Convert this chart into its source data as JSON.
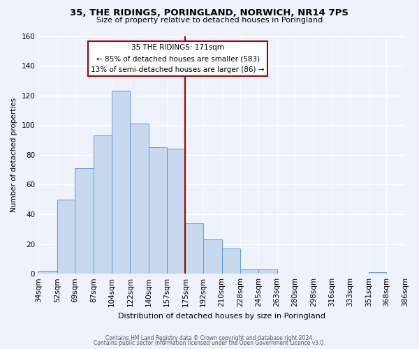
{
  "title": "35, THE RIDINGS, PORINGLAND, NORWICH, NR14 7PS",
  "subtitle": "Size of property relative to detached houses in Poringland",
  "xlabel": "Distribution of detached houses by size in Poringland",
  "ylabel": "Number of detached properties",
  "bar_edges": [
    34,
    52,
    69,
    87,
    104,
    122,
    140,
    157,
    175,
    192,
    210,
    228,
    245,
    263,
    280,
    298,
    316,
    333,
    351,
    368,
    386
  ],
  "bar_heights": [
    2,
    50,
    71,
    93,
    123,
    101,
    85,
    84,
    34,
    23,
    17,
    3,
    3,
    0,
    0,
    0,
    0,
    0,
    1,
    0,
    0
  ],
  "bar_color": "#c8d9ee",
  "bar_edgecolor": "#5b9bd5",
  "ref_line_x": 175,
  "ref_line_color": "#aa0000",
  "annotation_title": "35 THE RIDINGS: 171sqm",
  "annotation_line1": "← 85% of detached houses are smaller (583)",
  "annotation_line2": "13% of semi-detached houses are larger (86) →",
  "annotation_box_color": "#ffffff",
  "annotation_box_edgecolor": "#aa0000",
  "tick_labels": [
    "34sqm",
    "52sqm",
    "69sqm",
    "87sqm",
    "104sqm",
    "122sqm",
    "140sqm",
    "157sqm",
    "175sqm",
    "192sqm",
    "210sqm",
    "228sqm",
    "245sqm",
    "263sqm",
    "280sqm",
    "298sqm",
    "316sqm",
    "333sqm",
    "351sqm",
    "368sqm",
    "386sqm"
  ],
  "ylim": [
    0,
    160
  ],
  "yticks": [
    0,
    20,
    40,
    60,
    80,
    100,
    120,
    140,
    160
  ],
  "footer_line1": "Contains HM Land Registry data © Crown copyright and database right 2024.",
  "footer_line2": "Contains public sector information licensed under the Open Government Licence v3.0.",
  "background_color": "#edf2fb"
}
